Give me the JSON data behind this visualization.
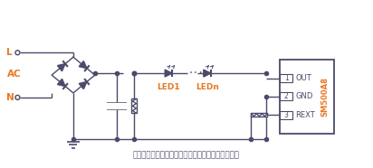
{
  "bg_color": "#ffffff",
  "line_color": "#4a4a6a",
  "orange_color": "#e87820",
  "note_text": "备注：上图电源可以是交流电源，也可为直流电源。",
  "chip_label": "SM500A8",
  "pins": [
    "OUT",
    "GND",
    "REXT"
  ],
  "pin_nums": [
    "1",
    "2",
    "3"
  ],
  "led_labels": [
    "LED1",
    "LEDn"
  ],
  "L_label": "L",
  "AC_label": "AC",
  "N_label": "N",
  "lw": 1.0
}
